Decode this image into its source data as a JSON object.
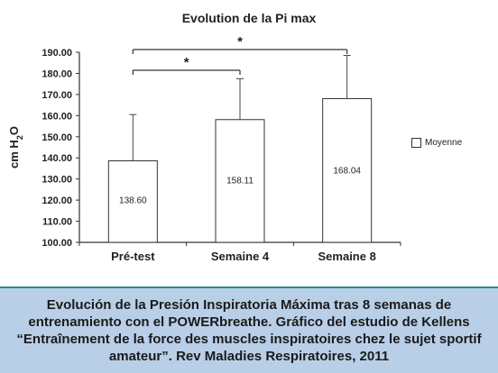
{
  "chart_data": {
    "type": "bar",
    "title": "Evolution de la Pi max",
    "ylabel": "cm H2O",
    "ylabel_main": "cm H",
    "ylabel_sub": "2",
    "ylabel_tail": "O",
    "xlabel": "",
    "categories": [
      "Pré-test",
      "Semaine 4",
      "Semaine 8"
    ],
    "series": [
      {
        "name": "Moyenne",
        "values": [
          138.6,
          158.11,
          168.04
        ],
        "labels": [
          "138.60",
          "158.11",
          "168.04"
        ],
        "error_upper": [
          160.5,
          177.5,
          188.5
        ]
      }
    ],
    "ylim": [
      100,
      190
    ],
    "yticks": [
      100,
      110,
      120,
      130,
      140,
      150,
      160,
      170,
      180,
      190
    ],
    "ytick_labels": [
      "100.00",
      "110.00",
      "120.00",
      "130.00",
      "140.00",
      "150.00",
      "160.00",
      "170.00",
      "180.00",
      "190.00"
    ],
    "significance": [
      {
        "from": 0,
        "to": 2,
        "label": "*"
      },
      {
        "from": 0,
        "to": 1,
        "label": "*"
      }
    ],
    "grid": false,
    "legend_position": "right"
  },
  "caption": {
    "lines": [
      "Evolución de la Presión Inspiratoria Máxima tras 8 semanas de",
      "entrenamiento con el POWERbreathe. Gráfico del estudio de Kellens",
      "“Entraînement de la force des muscles inspiratoires chez le sujet sportif",
      "amateur”. Rev Maladies Respiratoires, 2011"
    ]
  },
  "colors": {
    "caption_bg": "#b9cfe8",
    "caption_border": "#2a8a8a",
    "bar_fill": "#ffffff",
    "bar_stroke": "#333333"
  }
}
